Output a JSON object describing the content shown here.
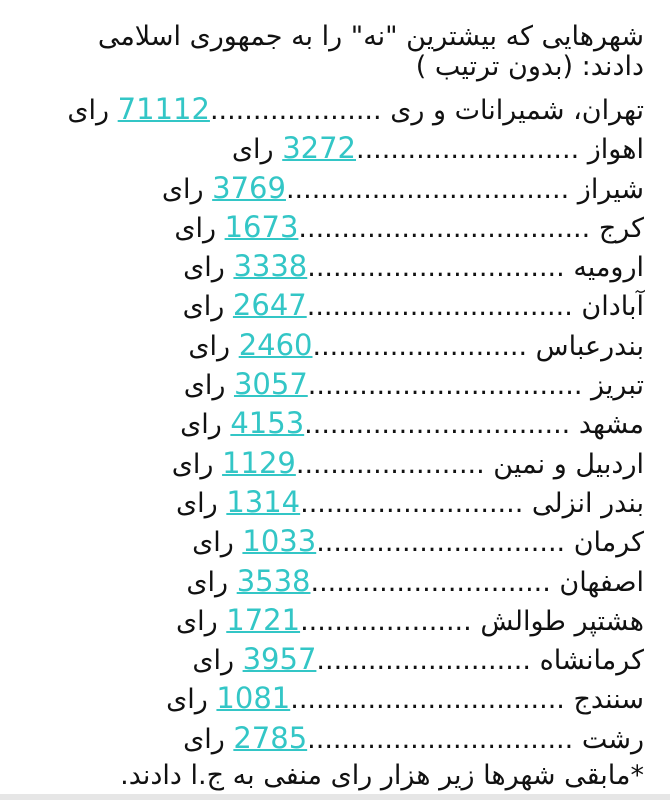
{
  "title": "شهرهایی که بیشترین \"نه\" را به جمهوری اسلامی دادند: (بدون ترتیب )",
  "unit": "رای",
  "rows": [
    {
      "city": "تهران، شمیرانات و ری",
      "dots": "....................",
      "value": "71112"
    },
    {
      "city": "اهواز",
      "dots": "..........................",
      "value": "3272"
    },
    {
      "city": "شیراز",
      "dots": ".................................",
      "value": "3769"
    },
    {
      "city": "کرج",
      "dots": "..................................",
      "value": "1673"
    },
    {
      "city": "ارومیه",
      "dots": "..............................",
      "value": "3338"
    },
    {
      "city": "آبادان",
      "dots": "...............................",
      "value": "2647"
    },
    {
      "city": "بندرعباس",
      "dots": ".........................",
      "value": "2460"
    },
    {
      "city": "تبریز",
      "dots": "................................",
      "value": "3057"
    },
    {
      "city": "مشهد",
      "dots": "...............................",
      "value": "4153"
    },
    {
      "city": "اردبیل و نمین",
      "dots": "......................",
      "value": "1129"
    },
    {
      "city": "بندر انزلی",
      "dots": "..........................",
      "value": "1314"
    },
    {
      "city": "کرمان",
      "dots": ".............................",
      "value": "1033"
    },
    {
      "city": "اصفهان",
      "dots": "............................",
      "value": "3538"
    },
    {
      "city": "هشتپر طوالش",
      "dots": "....................",
      "value": "1721"
    },
    {
      "city": "کرمانشاه",
      "dots": ".........................",
      "value": "3957"
    },
    {
      "city": "سنندج",
      "dots": "................................",
      "value": "1081"
    },
    {
      "city": "رشت",
      "dots": "...............................",
      "value": "2785"
    }
  ],
  "footnote": "*مابقی شهرها زیر هزار رای منفی به ج.ا دادند.",
  "colors": {
    "link": "#33c6c6",
    "text": "#111111"
  }
}
